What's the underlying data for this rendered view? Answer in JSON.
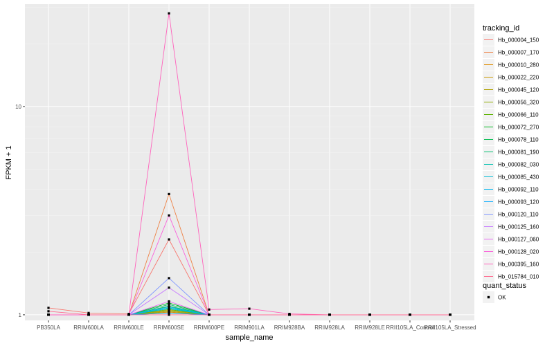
{
  "chart_data": {
    "type": "line",
    "xlabel": "sample_name",
    "ylabel": "FPKM + 1",
    "y_scale": "log10",
    "ylim": [
      0.94,
      31
    ],
    "y_ticks": [
      1,
      10
    ],
    "y_tick_labels": [
      "1",
      "10"
    ],
    "grid": true,
    "legend_position": "right",
    "categories": [
      "PB350LA",
      "RRIM600LA",
      "RRIM600LE",
      "RRIM600SE",
      "RRIM600PE",
      "RRIM901LA",
      "RRIM928BA",
      "RRIM928LA",
      "RRIM928LE",
      "RRII105LA_Control",
      "RRII105LA_Stressed"
    ],
    "legend_title": "tracking_id",
    "point_legend_title": "quant_status",
    "point_legend_label": "OK",
    "series": [
      {
        "name": "Hb_000004_150",
        "color": "#F8766D",
        "values": [
          1.08,
          1.02,
          1.01,
          2.3,
          1.0,
          1.0,
          1.0,
          1.0,
          1.0,
          1.0,
          1.0
        ]
      },
      {
        "name": "Hb_000007_170",
        "color": "#EE8043",
        "values": [
          1.0,
          1.0,
          1.0,
          3.8,
          1.0,
          1.0,
          1.0,
          1.0,
          1.0,
          1.0,
          1.0
        ]
      },
      {
        "name": "Hb_000010_280",
        "color": "#DE8C00",
        "values": [
          1.0,
          1.0,
          1.0,
          1.03,
          1.0,
          1.0,
          1.0,
          1.0,
          1.0,
          1.0,
          1.0
        ]
      },
      {
        "name": "Hb_000022_220",
        "color": "#C99800",
        "values": [
          1.0,
          1.0,
          1.0,
          1.05,
          1.0,
          1.0,
          1.0,
          1.0,
          1.0,
          1.0,
          1.0
        ]
      },
      {
        "name": "Hb_000045_120",
        "color": "#AFA100",
        "values": [
          1.0,
          1.0,
          1.0,
          1.02,
          1.0,
          1.0,
          1.0,
          1.0,
          1.0,
          1.0,
          1.0
        ]
      },
      {
        "name": "Hb_000056_320",
        "color": "#8EAB00",
        "values": [
          1.0,
          1.0,
          1.0,
          1.04,
          1.0,
          1.0,
          1.0,
          1.0,
          1.0,
          1.0,
          1.0
        ]
      },
      {
        "name": "Hb_000066_110",
        "color": "#5DB300",
        "values": [
          1.0,
          1.0,
          1.0,
          1.06,
          1.0,
          1.0,
          1.0,
          1.0,
          1.0,
          1.0,
          1.0
        ]
      },
      {
        "name": "Hb_000072_270",
        "color": "#00B81F",
        "values": [
          1.0,
          1.0,
          1.0,
          1.14,
          1.0,
          1.0,
          1.0,
          1.0,
          1.0,
          1.0,
          1.0
        ]
      },
      {
        "name": "Hb_000078_110",
        "color": "#00BB4E",
        "values": [
          1.0,
          1.0,
          1.0,
          1.1,
          1.0,
          1.0,
          1.0,
          1.0,
          1.0,
          1.0,
          1.0
        ]
      },
      {
        "name": "Hb_000081_190",
        "color": "#00BE70",
        "values": [
          1.0,
          1.0,
          1.0,
          1.12,
          1.0,
          1.0,
          1.0,
          1.0,
          1.0,
          1.0,
          1.0
        ]
      },
      {
        "name": "Hb_000082_030",
        "color": "#00C0AF",
        "values": [
          1.0,
          1.0,
          1.0,
          1.08,
          1.0,
          1.0,
          1.0,
          1.0,
          1.0,
          1.0,
          1.0
        ]
      },
      {
        "name": "Hb_000085_430",
        "color": "#00BCD8",
        "values": [
          1.0,
          1.0,
          1.0,
          1.07,
          1.0,
          1.0,
          1.0,
          1.0,
          1.0,
          1.0,
          1.0
        ]
      },
      {
        "name": "Hb_000092_110",
        "color": "#00B5EE",
        "values": [
          1.0,
          1.0,
          1.0,
          1.09,
          1.0,
          1.0,
          1.0,
          1.0,
          1.0,
          1.0,
          1.0
        ]
      },
      {
        "name": "Hb_000093_120",
        "color": "#00A9FF",
        "values": [
          1.0,
          1.0,
          1.0,
          1.02,
          1.0,
          1.0,
          1.0,
          1.0,
          1.0,
          1.0,
          1.0
        ]
      },
      {
        "name": "Hb_000120_110",
        "color": "#7F96FF",
        "values": [
          1.0,
          1.0,
          1.0,
          1.5,
          1.0,
          1.0,
          1.0,
          1.0,
          1.0,
          1.0,
          1.0
        ]
      },
      {
        "name": "Hb_000125_160",
        "color": "#C77CFF",
        "values": [
          1.0,
          1.0,
          1.0,
          1.35,
          1.0,
          1.0,
          1.0,
          1.0,
          1.0,
          1.0,
          1.0
        ]
      },
      {
        "name": "Hb_000127_060",
        "color": "#E76BF3",
        "values": [
          1.0,
          1.0,
          1.0,
          1.16,
          1.0,
          1.0,
          1.0,
          1.0,
          1.0,
          1.0,
          1.0
        ]
      },
      {
        "name": "Hb_000128_020",
        "color": "#FA62DB",
        "values": [
          1.0,
          1.0,
          1.0,
          3.0,
          1.0,
          1.0,
          1.0,
          1.0,
          1.0,
          1.0,
          1.0
        ]
      },
      {
        "name": "Hb_000395_160",
        "color": "#FF62BC",
        "values": [
          1.0,
          1.0,
          1.0,
          28.0,
          1.06,
          1.07,
          1.01,
          1.0,
          1.0,
          1.0,
          1.0
        ]
      },
      {
        "name": "Hb_015784_010",
        "color": "#FF6C91",
        "values": [
          1.04,
          1.0,
          1.0,
          1.0,
          1.0,
          1.0,
          1.0,
          1.0,
          1.0,
          1.0,
          1.0
        ]
      }
    ]
  }
}
